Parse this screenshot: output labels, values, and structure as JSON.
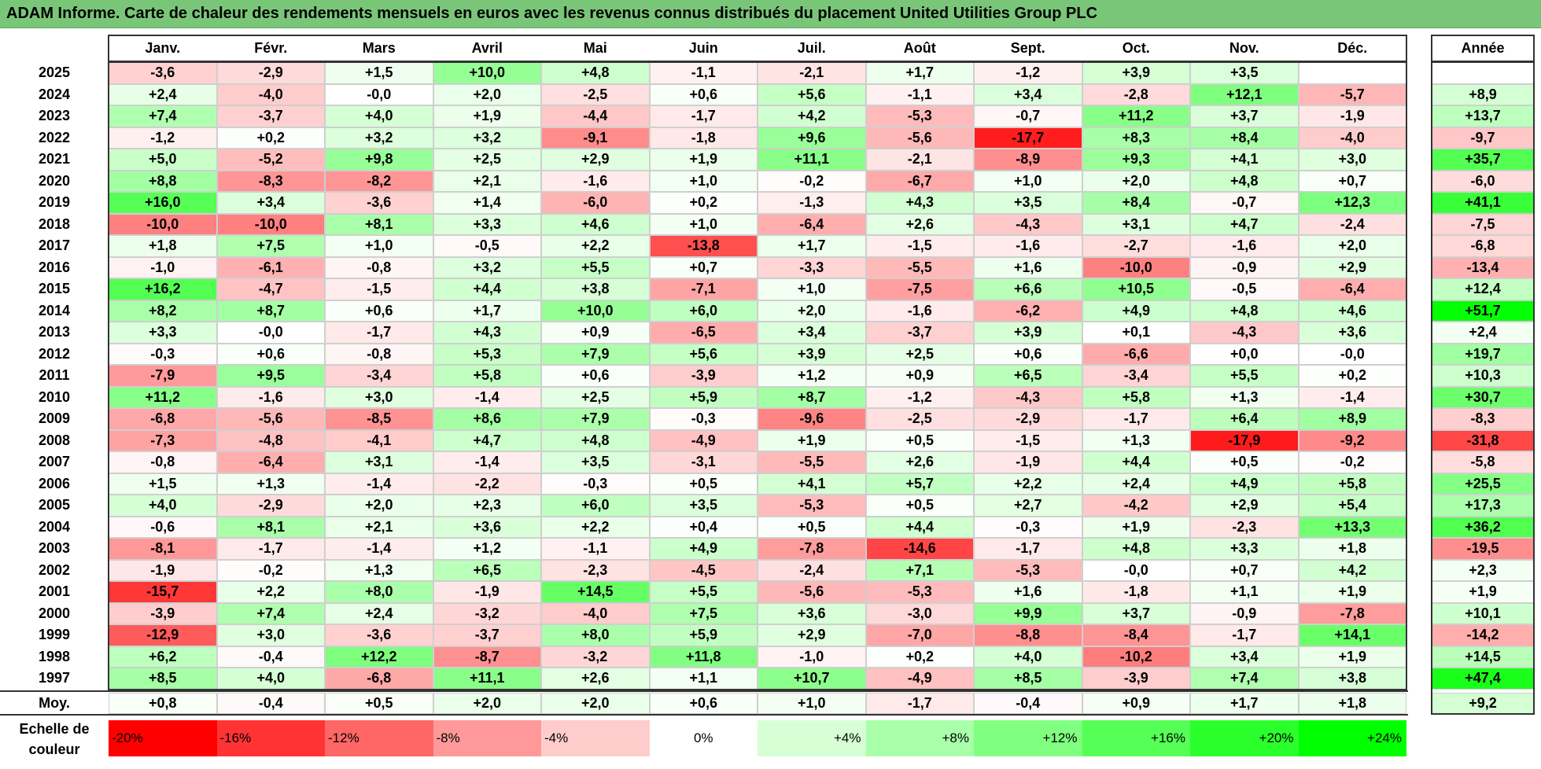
{
  "title": "ADAM Informe. Carte de chaleur des rendements mensuels en euros avec les revenus connus distribués du placement United Utilities Group PLC",
  "chart_data": {
    "type": "heatmap",
    "title": "ADAM Informe. Carte de chaleur des rendements mensuels en euros avec les revenus connus distribués du placement United Utilities Group PLC",
    "columns": [
      "Janv.",
      "Févr.",
      "Mars",
      "Avril",
      "Mai",
      "Juin",
      "Juil.",
      "Août",
      "Sept.",
      "Oct.",
      "Nov.",
      "Déc."
    ],
    "year_column_label": "Année",
    "average_row_label": "Moy.",
    "rows": [
      {
        "year": "2025",
        "months": [
          "-3,6",
          "-2,9",
          "+1,5",
          "+10,0",
          "+4,8",
          "-1,1",
          "-2,1",
          "+1,7",
          "-1,2",
          "+3,9",
          "+3,5",
          ""
        ],
        "annual": ""
      },
      {
        "year": "2024",
        "months": [
          "+2,4",
          "-4,0",
          "-0,0",
          "+2,0",
          "-2,5",
          "+0,6",
          "+5,6",
          "-1,1",
          "+3,4",
          "-2,8",
          "+12,1",
          "-5,7"
        ],
        "annual": "+8,9"
      },
      {
        "year": "2023",
        "months": [
          "+7,4",
          "-3,7",
          "+4,0",
          "+1,9",
          "-4,4",
          "-1,7",
          "+4,2",
          "-5,3",
          "-0,7",
          "+11,2",
          "+3,7",
          "-1,9"
        ],
        "annual": "+13,7"
      },
      {
        "year": "2022",
        "months": [
          "-1,2",
          "+0,2",
          "+3,2",
          "+3,2",
          "-9,1",
          "-1,8",
          "+9,6",
          "-5,6",
          "-17,7",
          "+8,3",
          "+8,4",
          "-4,0"
        ],
        "annual": "-9,7"
      },
      {
        "year": "2021",
        "months": [
          "+5,0",
          "-5,2",
          "+9,8",
          "+2,5",
          "+2,9",
          "+1,9",
          "+11,1",
          "-2,1",
          "-8,9",
          "+9,3",
          "+4,1",
          "+3,0"
        ],
        "annual": "+35,7"
      },
      {
        "year": "2020",
        "months": [
          "+8,8",
          "-8,3",
          "-8,2",
          "+2,1",
          "-1,6",
          "+1,0",
          "-0,2",
          "-6,7",
          "+1,0",
          "+2,0",
          "+4,8",
          "+0,7"
        ],
        "annual": "-6,0"
      },
      {
        "year": "2019",
        "months": [
          "+16,0",
          "+3,4",
          "-3,6",
          "+1,4",
          "-6,0",
          "+0,2",
          "-1,3",
          "+4,3",
          "+3,5",
          "+8,4",
          "-0,7",
          "+12,3"
        ],
        "annual": "+41,1"
      },
      {
        "year": "2018",
        "months": [
          "-10,0",
          "-10,0",
          "+8,1",
          "+3,3",
          "+4,6",
          "+1,0",
          "-6,4",
          "+2,6",
          "-4,3",
          "+3,1",
          "+4,7",
          "-2,4"
        ],
        "annual": "-7,5"
      },
      {
        "year": "2017",
        "months": [
          "+1,8",
          "+7,5",
          "+1,0",
          "-0,5",
          "+2,2",
          "-13,8",
          "+1,7",
          "-1,5",
          "-1,6",
          "-2,7",
          "-1,6",
          "+2,0"
        ],
        "annual": "-6,8"
      },
      {
        "year": "2016",
        "months": [
          "-1,0",
          "-6,1",
          "-0,8",
          "+3,2",
          "+5,5",
          "+0,7",
          "-3,3",
          "-5,5",
          "+1,6",
          "-10,0",
          "-0,9",
          "+2,9"
        ],
        "annual": "-13,4"
      },
      {
        "year": "2015",
        "months": [
          "+16,2",
          "-4,7",
          "-1,5",
          "+4,4",
          "+3,8",
          "-7,1",
          "+1,0",
          "-7,5",
          "+6,6",
          "+10,5",
          "-0,5",
          "-6,4"
        ],
        "annual": "+12,4"
      },
      {
        "year": "2014",
        "months": [
          "+8,2",
          "+8,7",
          "+0,6",
          "+1,7",
          "+10,0",
          "+6,0",
          "+2,0",
          "-1,6",
          "-6,2",
          "+4,9",
          "+4,8",
          "+4,6"
        ],
        "annual": "+51,7"
      },
      {
        "year": "2013",
        "months": [
          "+3,3",
          "-0,0",
          "-1,7",
          "+4,3",
          "+0,9",
          "-6,5",
          "+3,4",
          "-3,7",
          "+3,9",
          "+0,1",
          "-4,3",
          "+3,6"
        ],
        "annual": "+2,4"
      },
      {
        "year": "2012",
        "months": [
          "-0,3",
          "+0,6",
          "-0,8",
          "+5,3",
          "+7,9",
          "+5,6",
          "+3,9",
          "+2,5",
          "+0,6",
          "-6,6",
          "+0,0",
          "-0,0"
        ],
        "annual": "+19,7"
      },
      {
        "year": "2011",
        "months": [
          "-7,9",
          "+9,5",
          "-3,4",
          "+5,8",
          "+0,6",
          "-3,9",
          "+1,2",
          "+0,9",
          "+6,5",
          "-3,4",
          "+5,5",
          "+0,2"
        ],
        "annual": "+10,3"
      },
      {
        "year": "2010",
        "months": [
          "+11,2",
          "-1,6",
          "+3,0",
          "-1,4",
          "+2,5",
          "+5,9",
          "+8,7",
          "-1,2",
          "-4,3",
          "+5,8",
          "+1,3",
          "-1,4"
        ],
        "annual": "+30,7"
      },
      {
        "year": "2009",
        "months": [
          "-6,8",
          "-5,6",
          "-8,5",
          "+8,6",
          "+7,9",
          "-0,3",
          "-9,6",
          "-2,5",
          "-2,9",
          "-1,7",
          "+6,4",
          "+8,9"
        ],
        "annual": "-8,3"
      },
      {
        "year": "2008",
        "months": [
          "-7,3",
          "-4,8",
          "-4,1",
          "+4,7",
          "+4,8",
          "-4,9",
          "+1,9",
          "+0,5",
          "-1,5",
          "+1,3",
          "-17,9",
          "-9,2"
        ],
        "annual": "-31,8"
      },
      {
        "year": "2007",
        "months": [
          "-0,8",
          "-6,4",
          "+3,1",
          "-1,4",
          "+3,5",
          "-3,1",
          "-5,5",
          "+2,6",
          "-1,9",
          "+4,4",
          "+0,5",
          "-0,2"
        ],
        "annual": "-5,8"
      },
      {
        "year": "2006",
        "months": [
          "+1,5",
          "+1,3",
          "-1,4",
          "-2,2",
          "-0,3",
          "+0,5",
          "+4,1",
          "+5,7",
          "+2,2",
          "+2,4",
          "+4,9",
          "+5,8"
        ],
        "annual": "+25,5"
      },
      {
        "year": "2005",
        "months": [
          "+4,0",
          "-2,9",
          "+2,0",
          "+2,3",
          "+6,0",
          "+3,5",
          "-5,3",
          "+0,5",
          "+2,7",
          "-4,2",
          "+2,9",
          "+5,4"
        ],
        "annual": "+17,3"
      },
      {
        "year": "2004",
        "months": [
          "-0,6",
          "+8,1",
          "+2,1",
          "+3,6",
          "+2,2",
          "+0,4",
          "+0,5",
          "+4,4",
          "-0,3",
          "+1,9",
          "-2,3",
          "+13,3"
        ],
        "annual": "+36,2"
      },
      {
        "year": "2003",
        "months": [
          "-8,1",
          "-1,7",
          "-1,4",
          "+1,2",
          "-1,1",
          "+4,9",
          "-7,8",
          "-14,6",
          "-1,7",
          "+4,8",
          "+3,3",
          "+1,8"
        ],
        "annual": "-19,5"
      },
      {
        "year": "2002",
        "months": [
          "-1,9",
          "-0,2",
          "+1,3",
          "+6,5",
          "-2,3",
          "-4,5",
          "-2,4",
          "+7,1",
          "-5,3",
          "-0,0",
          "+0,7",
          "+4,2"
        ],
        "annual": "+2,3"
      },
      {
        "year": "2001",
        "months": [
          "-15,7",
          "+2,2",
          "+8,0",
          "-1,9",
          "+14,5",
          "+5,5",
          "-5,6",
          "-5,3",
          "+1,6",
          "-1,8",
          "+1,1",
          "+1,9"
        ],
        "annual": "+1,9"
      },
      {
        "year": "2000",
        "months": [
          "-3,9",
          "+7,4",
          "+2,4",
          "-3,2",
          "-4,0",
          "+7,5",
          "+3,6",
          "-3,0",
          "+9,9",
          "+3,7",
          "-0,9",
          "-7,8"
        ],
        "annual": "+10,1"
      },
      {
        "year": "1999",
        "months": [
          "-12,9",
          "+3,0",
          "-3,6",
          "-3,7",
          "+8,0",
          "+5,9",
          "+2,9",
          "-7,0",
          "-8,8",
          "-8,4",
          "-1,7",
          "+14,1"
        ],
        "annual": "-14,2"
      },
      {
        "year": "1998",
        "months": [
          "+6,2",
          "-0,4",
          "+12,2",
          "-8,7",
          "-3,2",
          "+11,8",
          "-1,0",
          "+0,2",
          "+4,0",
          "-10,2",
          "+3,4",
          "+1,9"
        ],
        "annual": "+14,5"
      },
      {
        "year": "1997",
        "months": [
          "+8,5",
          "+4,0",
          "-6,8",
          "+11,1",
          "+2,6",
          "+1,1",
          "+10,7",
          "-4,9",
          "+8,5",
          "-3,9",
          "+7,4",
          "+3,8"
        ],
        "annual": "+47,4"
      }
    ],
    "averages": {
      "months": [
        "+0,8",
        "-0,4",
        "+0,5",
        "+2,0",
        "+2,0",
        "+0,6",
        "+1,0",
        "-1,7",
        "-0,4",
        "+0,9",
        "+1,7",
        "+1,8"
      ],
      "annual": "+9,2"
    },
    "color_scale": {
      "caption_line1": "Echelle de",
      "caption_line2": "couleur",
      "stops": [
        {
          "label": "-20%",
          "value": -20,
          "color": "#ff0000"
        },
        {
          "label": "-16%",
          "value": -16,
          "color": "#ff3333"
        },
        {
          "label": "-12%",
          "value": -12,
          "color": "#ff6666"
        },
        {
          "label": "-8%",
          "value": -8,
          "color": "#ff9999"
        },
        {
          "label": "-4%",
          "value": -4,
          "color": "#ffcccc"
        },
        {
          "label": "0%",
          "value": 0,
          "color": "#ffffff"
        },
        {
          "label": "+4%",
          "value": 4,
          "color": "#d6ffd6"
        },
        {
          "label": "+8%",
          "value": 8,
          "color": "#aaffaa"
        },
        {
          "label": "+12%",
          "value": 12,
          "color": "#80ff80"
        },
        {
          "label": "+16%",
          "value": 16,
          "color": "#55ff55"
        },
        {
          "label": "+20%",
          "value": 20,
          "color": "#2bff2b"
        },
        {
          "label": "+24%",
          "value": 24,
          "color": "#00ff00"
        }
      ]
    }
  }
}
